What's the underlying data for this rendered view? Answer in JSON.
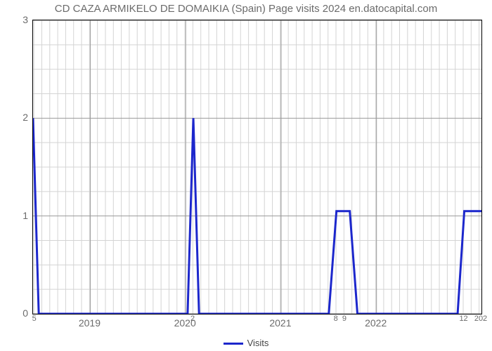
{
  "chart": {
    "type": "line",
    "title": "CD CAZA ARMIKELO DE DOMAIKIA (Spain) Page visits 2024 en.datocapital.com",
    "title_fontsize": 15,
    "title_color": "#6b6b6b",
    "background_color": "#ffffff",
    "plot_border_color": "#000000",
    "xlim": [
      2018.4,
      2023.1
    ],
    "ylim": [
      0,
      3
    ],
    "y_ticks": [
      0,
      1,
      2,
      3
    ],
    "x_major_ticks": [
      2019,
      2020,
      2021,
      2022
    ],
    "x_minor_step": 0.083333,
    "x_minor_labels": [
      {
        "x": 2018.42,
        "label": "5"
      },
      {
        "x": 2020.08,
        "label": "2"
      },
      {
        "x": 2021.58,
        "label": "8"
      },
      {
        "x": 2021.67,
        "label": "9"
      },
      {
        "x": 2022.92,
        "label": "12"
      },
      {
        "x": 2023.1,
        "label": "202"
      }
    ],
    "grid_major_color": "#9a9a9a",
    "grid_minor_color": "#d4d4d4",
    "tick_label_color": "#6b6b6b",
    "tick_fontsize": 14,
    "series": {
      "name": "Visits",
      "color": "#1c27cc",
      "line_width": 3,
      "points": [
        [
          2018.4,
          2.0
        ],
        [
          2018.46,
          0.0
        ],
        [
          2019.95,
          0.0
        ],
        [
          2020.02,
          0.0
        ],
        [
          2020.08,
          2.0
        ],
        [
          2020.14,
          0.0
        ],
        [
          2021.5,
          0.0
        ],
        [
          2021.58,
          1.05
        ],
        [
          2021.72,
          1.05
        ],
        [
          2021.8,
          0.0
        ],
        [
          2022.85,
          0.0
        ],
        [
          2022.92,
          1.05
        ],
        [
          2023.1,
          1.05
        ]
      ]
    },
    "legend_label": "Visits"
  }
}
